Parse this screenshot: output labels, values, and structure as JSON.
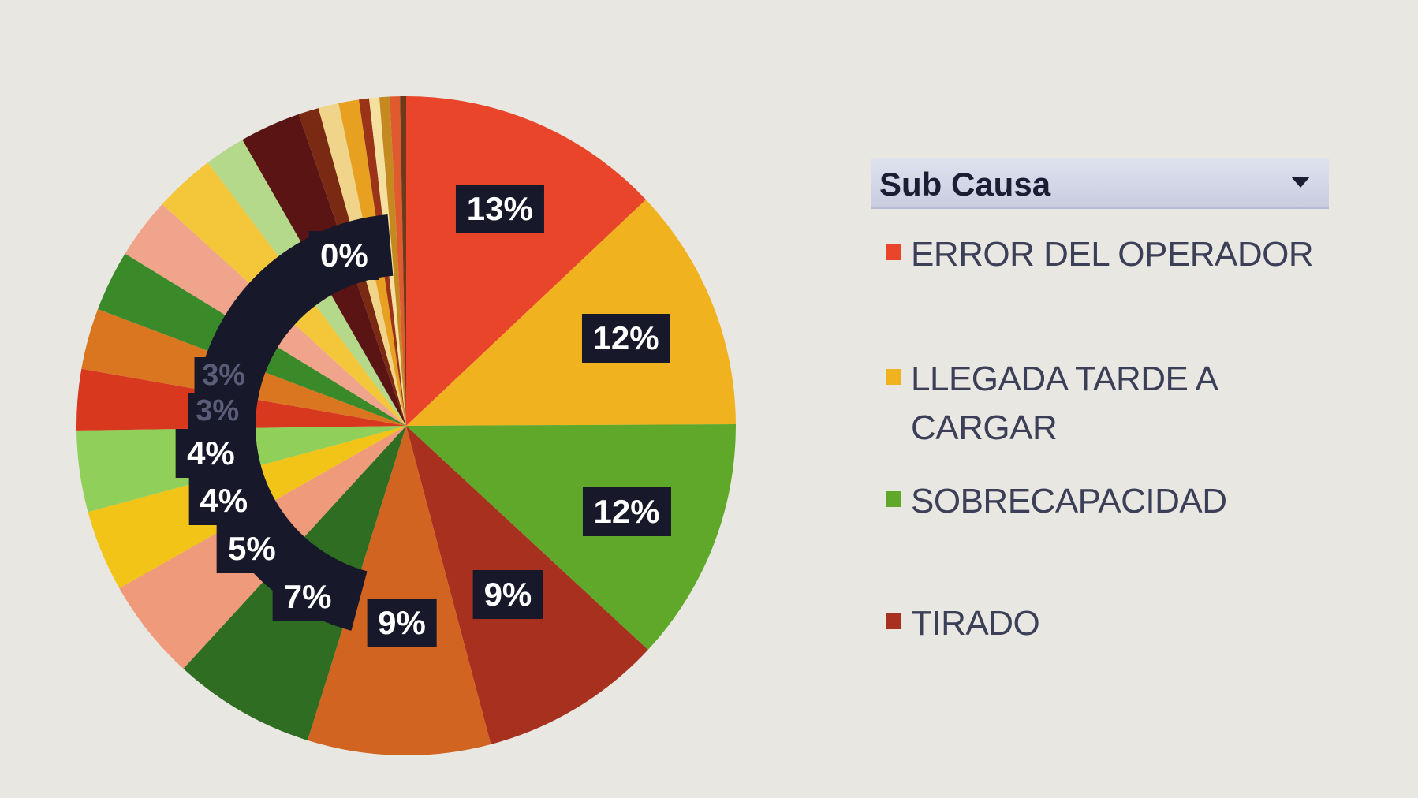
{
  "chart_data": {
    "type": "pie",
    "legend_title": "Sub Causa",
    "legend_placement": "right",
    "slices": [
      {
        "name": "ERROR DEL OPERADOR",
        "value": 13,
        "label": "13%",
        "color": "#e8452a"
      },
      {
        "name": "LLEGADA TARDE A CARGAR",
        "value": 12,
        "label": "12%",
        "color": "#f0b21e"
      },
      {
        "name": "SOBRECAPACIDAD",
        "value": 12,
        "label": "12%",
        "color": "#5fa82a"
      },
      {
        "name": "TIRADO",
        "value": 9,
        "label": "9%",
        "color": "#a7301f"
      },
      {
        "name": "",
        "value": 9,
        "label": "9%",
        "color": "#d06420"
      },
      {
        "name": "",
        "value": 7,
        "label": "7%",
        "color": "#2f6d22"
      },
      {
        "name": "",
        "value": 5,
        "label": "5%",
        "color": "#f09a7c"
      },
      {
        "name": "",
        "value": 4,
        "label": "4%",
        "color": "#f2c418"
      },
      {
        "name": "",
        "value": 4,
        "label": "4%",
        "color": "#8fcf5a"
      },
      {
        "name": "",
        "value": 3,
        "label": "3%",
        "color": "#d8381e"
      },
      {
        "name": "",
        "value": 3,
        "label": "3%",
        "color": "#d9761f"
      },
      {
        "name": "",
        "value": 3,
        "label": "",
        "color": "#3b8a2a"
      },
      {
        "name": "",
        "value": 3,
        "label": "",
        "color": "#f1a48c"
      },
      {
        "name": "",
        "value": 3,
        "label": "",
        "color": "#f4c63a"
      },
      {
        "name": "",
        "value": 2,
        "label": "",
        "color": "#b5d98a"
      },
      {
        "name": "",
        "value": 3,
        "label": "",
        "color": "#5a1414"
      },
      {
        "name": "",
        "value": 1,
        "label": "",
        "color": "#7a2a12"
      },
      {
        "name": "",
        "value": 1,
        "label": "",
        "color": "#efd48a"
      },
      {
        "name": "",
        "value": 1,
        "label": "",
        "color": "#e8a020"
      },
      {
        "name": "",
        "value": 0.5,
        "label": "",
        "color": "#9a3318"
      },
      {
        "name": "",
        "value": 0.5,
        "label": "",
        "color": "#f6e0a0"
      },
      {
        "name": "",
        "value": 0.5,
        "label": "",
        "color": "#c48a20"
      },
      {
        "name": "",
        "value": 0.5,
        "label": "",
        "color": "#e05a30"
      },
      {
        "name": "",
        "value": 0.3,
        "label": "0%",
        "color": "#6e3a1a"
      }
    ]
  }
}
